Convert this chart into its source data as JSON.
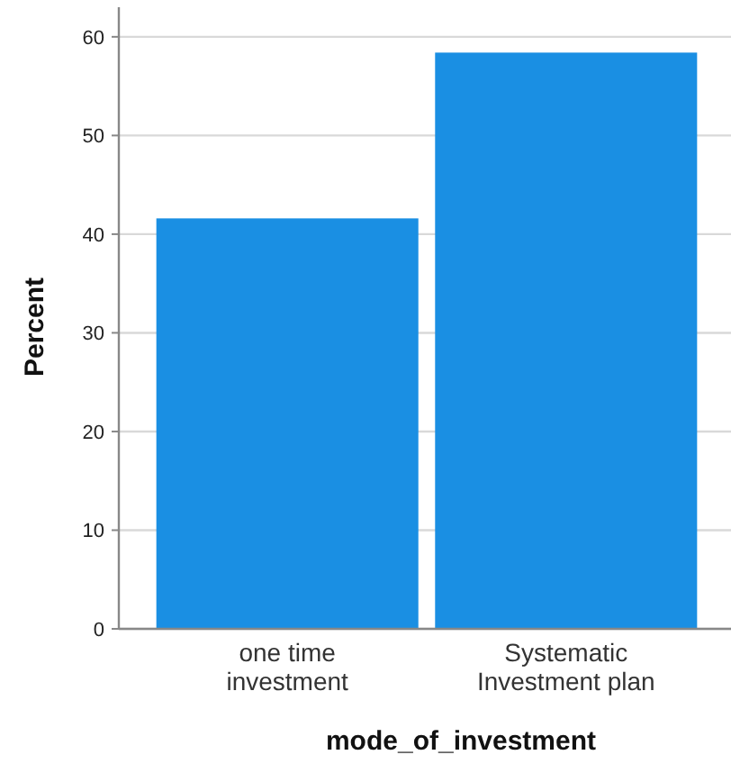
{
  "chart_data": {
    "type": "bar",
    "xlabel": "mode_of_investment",
    "ylabel": "Percent",
    "categories": [
      "one time investment",
      "Systematic Investment plan"
    ],
    "values": [
      41.6,
      58.4
    ],
    "color": "#1a8fe3",
    "ylim": [
      0,
      63
    ],
    "yticks": [
      0,
      10,
      20,
      30,
      40,
      50,
      60
    ],
    "grid": "y"
  }
}
